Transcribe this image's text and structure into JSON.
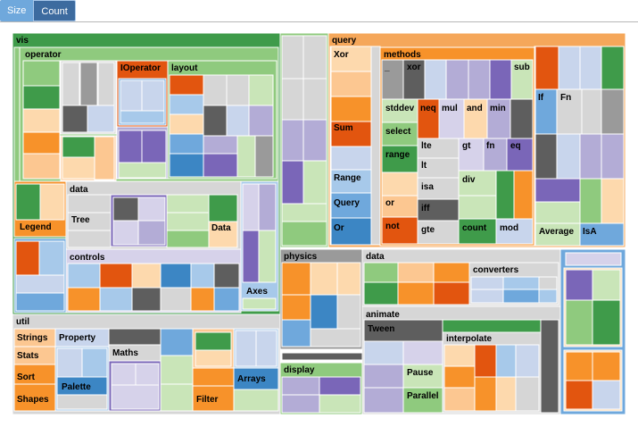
{
  "toolbar": {
    "size_label": "Size",
    "count_label": "Count",
    "active": "Count"
  },
  "chart_data": {
    "type": "treemap",
    "size_metric": "Count",
    "groups": [
      {
        "name": "vis",
        "color": "#3f9b4a",
        "children": [
          {
            "name": "operator",
            "color": "#8fca7e",
            "labels": [
              "IOperator",
              "layout"
            ]
          },
          {
            "name": "data",
            "color": "#b4b4b4",
            "labels": [
              "Tree",
              "Data"
            ]
          },
          {
            "name": "controls",
            "color": "#d7d0ea",
            "labels": []
          },
          {
            "name": "",
            "color": "#f29a3b",
            "labels": [
              "Legend"
            ]
          },
          {
            "name": "",
            "color": "#a9ccec",
            "labels": [
              "Axes"
            ]
          }
        ]
      },
      {
        "name": "query",
        "color": "#f5a75a",
        "children": [
          {
            "name": "",
            "color": "#fdd7ab",
            "labels": [
              "Xor",
              "Sum",
              "Range",
              "Query",
              "Or"
            ]
          },
          {
            "name": "methods",
            "color": "#f7a347",
            "labels": [
              "_",
              "xor",
              "sub",
              "stddev",
              "neq",
              "mul",
              "and",
              "min",
              "select",
              "lte",
              "gt",
              "fn",
              "eq",
              "range",
              "lt",
              "isa",
              "div",
              "or",
              "iff",
              "not",
              "gte",
              "count",
              "mod"
            ]
          },
          {
            "name": "",
            "color": "#ffffff",
            "labels": [
              "If",
              "Fn",
              "Average",
              "IsA"
            ]
          }
        ]
      },
      {
        "name": "physics",
        "color": "#a9a9a9",
        "children": []
      },
      {
        "name": "data",
        "color": "#b4b4b4",
        "children": [
          {
            "name": "converters",
            "color": "#c7c7c7",
            "labels": []
          }
        ]
      },
      {
        "name": "animate",
        "color": "#d1d1d1",
        "children": [
          {
            "name": "",
            "color": "#ffffff",
            "labels": [
              "Tween",
              "Pause",
              "Parallel"
            ]
          },
          {
            "name": "interpolate",
            "color": "#b4b4b4",
            "labels": []
          }
        ]
      },
      {
        "name": "display",
        "color": "#9fd08f",
        "children": []
      },
      {
        "name": "util",
        "color": "#d5d5d5",
        "children": [
          {
            "name": "",
            "color": "#ffffff",
            "labels": [
              "Strings",
              "Property",
              "Stats",
              "Maths",
              "Sort",
              "Palette",
              "Shapes",
              "Filter",
              "Arrays"
            ]
          }
        ]
      },
      {
        "name": "",
        "color": "#6fa8dc",
        "children": []
      }
    ]
  }
}
